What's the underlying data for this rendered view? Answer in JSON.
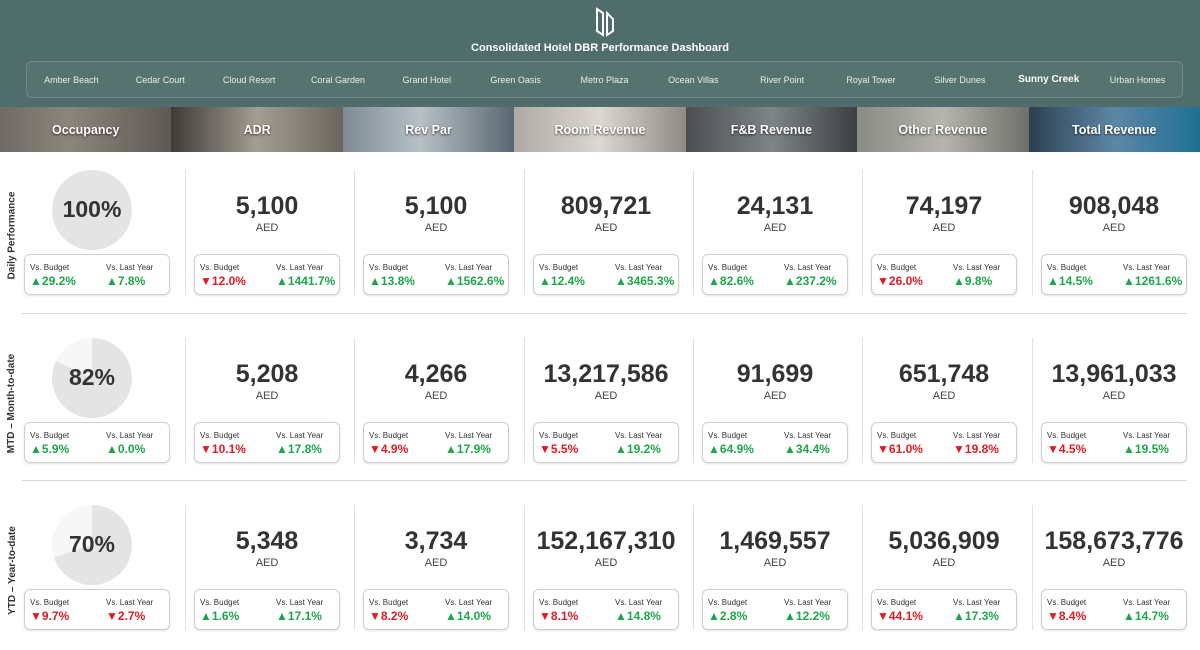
{
  "header": {
    "title": "Consolidated Hotel DBR Performance Dashboard",
    "background": "#4f6d6b"
  },
  "hotels": [
    "Amber Beach",
    "Cedar Court",
    "Cloud Resort",
    "Coral Garden",
    "Grand Hotel",
    "Green Oasis",
    "Metro Plaza",
    "Ocean Villas",
    "River Point",
    "Royal Tower",
    "Silver Dunes",
    "Sunny Creek",
    "Urban Homes"
  ],
  "selected_hotel": "Sunny Creek",
  "metrics": [
    "Occupancy",
    "ADR",
    "Rev Par",
    "Room Revenue",
    "F&B Revenue",
    "Other Revenue",
    "Total Revenue"
  ],
  "labels": {
    "unit": "AED",
    "vs_budget": "Vs. Budget",
    "vs_last_year": "Vs. Last Year"
  },
  "colors": {
    "positive": "#1ea64a",
    "negative": "#e01b24",
    "pie_fill": "#e4e4e4"
  },
  "rows": [
    {
      "label": "Daily Performance",
      "occupancy": {
        "value": "100%",
        "fraction": 1.0,
        "vs_budget": "29.2%",
        "vs_budget_dir": "up",
        "vs_ly": "7.8%",
        "vs_ly_dir": "up"
      },
      "cards": [
        {
          "value": "5,100",
          "vs_budget": "12.0%",
          "vs_budget_dir": "down",
          "vs_ly": "1441.7%",
          "vs_ly_dir": "up"
        },
        {
          "value": "5,100",
          "vs_budget": "13.8%",
          "vs_budget_dir": "up",
          "vs_ly": "1562.6%",
          "vs_ly_dir": "up"
        },
        {
          "value": "809,721",
          "vs_budget": "12.4%",
          "vs_budget_dir": "up",
          "vs_ly": "3465.3%",
          "vs_ly_dir": "up"
        },
        {
          "value": "24,131",
          "vs_budget": "82.6%",
          "vs_budget_dir": "up",
          "vs_ly": "237.2%",
          "vs_ly_dir": "up"
        },
        {
          "value": "74,197",
          "vs_budget": "26.0%",
          "vs_budget_dir": "down",
          "vs_ly": "9.8%",
          "vs_ly_dir": "up"
        },
        {
          "value": "908,048",
          "vs_budget": "14.5%",
          "vs_budget_dir": "up",
          "vs_ly": "1261.6%",
          "vs_ly_dir": "up"
        }
      ]
    },
    {
      "label": "MTD – Month-to-date",
      "occupancy": {
        "value": "82%",
        "fraction": 0.82,
        "vs_budget": "5.9%",
        "vs_budget_dir": "up",
        "vs_ly": "0.0%",
        "vs_ly_dir": "up"
      },
      "cards": [
        {
          "value": "5,208",
          "vs_budget": "10.1%",
          "vs_budget_dir": "down",
          "vs_ly": "17.8%",
          "vs_ly_dir": "up"
        },
        {
          "value": "4,266",
          "vs_budget": "4.9%",
          "vs_budget_dir": "down",
          "vs_ly": "17.9%",
          "vs_ly_dir": "up"
        },
        {
          "value": "13,217,586",
          "vs_budget": "5.5%",
          "vs_budget_dir": "down",
          "vs_ly": "19.2%",
          "vs_ly_dir": "up"
        },
        {
          "value": "91,699",
          "vs_budget": "64.9%",
          "vs_budget_dir": "up",
          "vs_ly": "34.4%",
          "vs_ly_dir": "up"
        },
        {
          "value": "651,748",
          "vs_budget": "61.0%",
          "vs_budget_dir": "down",
          "vs_ly": "19.8%",
          "vs_ly_dir": "down"
        },
        {
          "value": "13,961,033",
          "vs_budget": "4.5%",
          "vs_budget_dir": "down",
          "vs_ly": "19.5%",
          "vs_ly_dir": "up"
        }
      ]
    },
    {
      "label": "YTD – Year-to-date",
      "occupancy": {
        "value": "70%",
        "fraction": 0.7,
        "vs_budget": "9.7%",
        "vs_budget_dir": "down",
        "vs_ly": "2.7%",
        "vs_ly_dir": "down"
      },
      "cards": [
        {
          "value": "5,348",
          "vs_budget": "1.6%",
          "vs_budget_dir": "up",
          "vs_ly": "17.1%",
          "vs_ly_dir": "up"
        },
        {
          "value": "3,734",
          "vs_budget": "8.2%",
          "vs_budget_dir": "down",
          "vs_ly": "14.0%",
          "vs_ly_dir": "up"
        },
        {
          "value": "152,167,310",
          "vs_budget": "8.1%",
          "vs_budget_dir": "down",
          "vs_ly": "14.8%",
          "vs_ly_dir": "up"
        },
        {
          "value": "1,469,557",
          "vs_budget": "2.8%",
          "vs_budget_dir": "up",
          "vs_ly": "12.2%",
          "vs_ly_dir": "up"
        },
        {
          "value": "5,036,909",
          "vs_budget": "44.1%",
          "vs_budget_dir": "down",
          "vs_ly": "17.3%",
          "vs_ly_dir": "up"
        },
        {
          "value": "158,673,776",
          "vs_budget": "8.4%",
          "vs_budget_dir": "down",
          "vs_ly": "14.7%",
          "vs_ly_dir": "up"
        }
      ]
    }
  ]
}
